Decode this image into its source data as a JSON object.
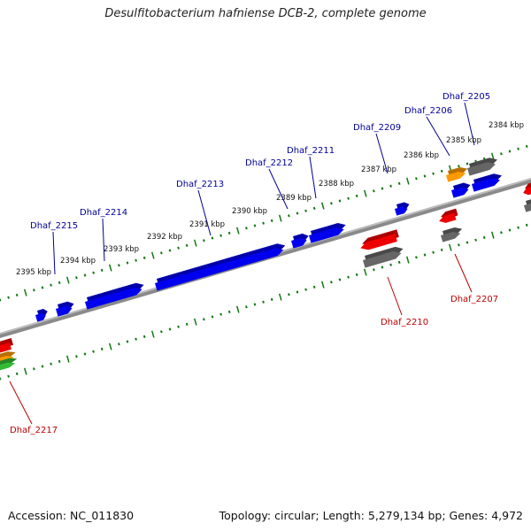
{
  "title": "Desulfitobacterium hafniense DCB-2, complete genome",
  "footer": {
    "accession": "Accession: NC_011830",
    "summary": "Topology: circular; Length: 5,279,134 bp; Genes: 4,972"
  },
  "colors": {
    "forward_gene": "#0000ee",
    "reverse_gene": "#ee0000",
    "gray_gene": "#666666",
    "orange_gene": "#ff9900",
    "green_gene": "#33bb33",
    "backbone": "#8a8a8a",
    "tick": "#117711",
    "label_blue": "#000099",
    "label_red": "#bb0000",
    "kbp_text": "#111111"
  },
  "kbp_labels": [
    "2395 kbp",
    "2394 kbp",
    "2393 kbp",
    "2392 kbp",
    "2391 kbp",
    "2390 kbp",
    "2389 kbp",
    "2388 kbp",
    "2387 kbp",
    "2386 kbp",
    "2385 kbp",
    "2384 kbp"
  ],
  "gene_labels": [
    "Dhaf_2215",
    "Dhaf_2214",
    "Dhaf_2213",
    "Dhaf_2212",
    "Dhaf_2211",
    "Dhaf_2209",
    "Dhaf_2206",
    "Dhaf_2205",
    "Dhaf_2210",
    "Dhaf_2207",
    "Dhaf_2217"
  ]
}
